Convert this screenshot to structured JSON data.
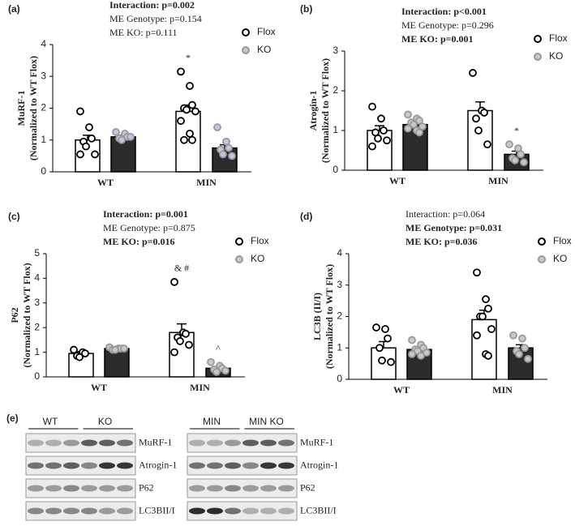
{
  "chart_data": [
    {
      "type": "bar",
      "label": "(a)",
      "stats": [
        {
          "text": "Interaction: p=0.002",
          "bold": true
        },
        {
          "text": "ME Genotype: p=0.154",
          "bold": false
        },
        {
          "text": "ME KO: p=0.111",
          "bold": false
        }
      ],
      "ylabel": [
        "MuRF-1",
        "(Normalized to WT Flox)"
      ],
      "categories": [
        "WT",
        "MIN"
      ],
      "ylim": [
        0,
        4
      ],
      "yticks": [
        0,
        1,
        2,
        3,
        4
      ],
      "series": [
        {
          "name": "Flox",
          "color": "#ffffff",
          "point_color": "#ffffff",
          "values": [
            1.0,
            1.9
          ],
          "errors": [
            0.15,
            0.2
          ],
          "points": [
            [
              1.9,
              1.4,
              1.05,
              0.95,
              0.8,
              0.55,
              0.55
            ],
            [
              3.15,
              2.7,
              2.1,
              2.0,
              1.95,
              1.9,
              1.6,
              1.2,
              1.0,
              1.0
            ]
          ],
          "sig_labels": [
            null,
            "*"
          ]
        },
        {
          "name": "KO",
          "color": "#2b2b2b",
          "point_color": "#c6c3e3",
          "values": [
            1.1,
            0.75
          ],
          "errors": [
            0.05,
            0.1
          ],
          "points": [
            [
              1.25,
              1.2,
              1.1,
              1.05,
              1.0,
              1.1
            ],
            [
              1.4,
              0.95,
              0.75,
              0.7,
              0.55,
              0.5
            ]
          ],
          "sig_labels": [
            null,
            null
          ]
        }
      ]
    },
    {
      "type": "bar",
      "label": "(b)",
      "stats": [
        {
          "text": "Interaction: p<0.001",
          "bold": true
        },
        {
          "text": "ME Genotype: p=0.296",
          "bold": false
        },
        {
          "text": "ME KO: p=0.001",
          "bold": true
        }
      ],
      "ylabel": [
        "Atrogin-1",
        "(Normalized to WT Flox)"
      ],
      "categories": [
        "WT",
        "MIN"
      ],
      "ylim": [
        0,
        3
      ],
      "yticks": [
        0,
        1,
        2,
        3
      ],
      "series": [
        {
          "name": "Flox",
          "color": "#ffffff",
          "point_color": "#ffffff",
          "values": [
            1.0,
            1.5
          ],
          "errors": [
            0.12,
            0.22
          ],
          "points": [
            [
              1.6,
              1.3,
              1.0,
              0.95,
              0.8,
              0.75,
              0.6
            ],
            [
              2.45,
              1.5,
              1.45,
              1.3,
              1.0,
              0.65
            ]
          ],
          "sig_labels": [
            null,
            null
          ]
        },
        {
          "name": "KO",
          "color": "#2b2b2b",
          "point_color": "#c8c8c8",
          "values": [
            1.15,
            0.4
          ],
          "errors": [
            0.05,
            0.08
          ],
          "points": [
            [
              1.4,
              1.3,
              1.25,
              1.2,
              1.15,
              1.1,
              1.05,
              1.0,
              0.95
            ],
            [
              0.65,
              0.55,
              0.4,
              0.3,
              0.25,
              0.2
            ]
          ],
          "sig_labels": [
            null,
            "*"
          ]
        }
      ]
    },
    {
      "type": "bar",
      "label": "(c)",
      "stats": [
        {
          "text": "Interaction: p=0.001",
          "bold": true
        },
        {
          "text": "ME Genotype: p=0.875",
          "bold": false
        },
        {
          "text": "ME KO: p=0.016",
          "bold": true
        }
      ],
      "ylabel": [
        "P62",
        "(Normalized to WT Flox)"
      ],
      "categories": [
        "WT",
        "MIN"
      ],
      "ylim": [
        0,
        5
      ],
      "yticks": [
        0,
        1,
        2,
        3,
        4,
        5
      ],
      "series": [
        {
          "name": "Flox",
          "color": "#ffffff",
          "point_color": "#ffffff",
          "values": [
            0.95,
            1.8
          ],
          "errors": [
            0.08,
            0.35
          ],
          "points": [
            [
              1.1,
              1.0,
              0.95,
              0.85,
              0.8
            ],
            [
              3.85,
              1.8,
              1.75,
              1.6,
              1.45,
              1.3,
              1.0
            ]
          ],
          "sig_labels": [
            null,
            "& #"
          ]
        },
        {
          "name": "KO",
          "color": "#2b2b2b",
          "point_color": "#c8c8c8",
          "values": [
            1.15,
            0.35
          ],
          "errors": [
            0.03,
            0.06
          ],
          "points": [
            [
              1.2,
              1.15,
              1.15,
              1.1,
              1.1,
              1.15
            ],
            [
              0.6,
              0.45,
              0.35,
              0.3,
              0.2,
              0.25
            ]
          ],
          "sig_labels": [
            null,
            "^"
          ]
        }
      ]
    },
    {
      "type": "bar",
      "label": "(d)",
      "stats": [
        {
          "text": "Interaction: p=0.064",
          "bold": false
        },
        {
          "text": "ME Genotype: p=0.031",
          "bold": true
        },
        {
          "text": "ME KO: p=0.036",
          "bold": true
        }
      ],
      "ylabel": [
        "LC3B (II/I)",
        "(Normalized to WT Flox)"
      ],
      "categories": [
        "WT",
        "MIN"
      ],
      "ylim": [
        0,
        4
      ],
      "yticks": [
        0,
        1,
        2,
        3,
        4
      ],
      "series": [
        {
          "name": "Flox",
          "color": "#ffffff",
          "point_color": "#ffffff",
          "values": [
            1.0,
            1.9
          ],
          "errors": [
            0.2,
            0.3
          ],
          "points": [
            [
              1.65,
              1.6,
              1.3,
              1.0,
              0.6,
              0.55
            ],
            [
              3.4,
              2.55,
              2.25,
              2.0,
              2.0,
              1.6,
              1.4,
              0.8,
              0.75
            ]
          ],
          "sig_labels": [
            null,
            null
          ]
        },
        {
          "name": "KO",
          "color": "#2b2b2b",
          "point_color": "#c8c8c8",
          "values": [
            0.95,
            1.0
          ],
          "errors": [
            0.07,
            0.1
          ],
          "points": [
            [
              1.25,
              1.1,
              1.0,
              0.95,
              0.9,
              0.85,
              0.8,
              0.75
            ],
            [
              1.4,
              1.3,
              1.0,
              0.9,
              0.8,
              0.65
            ]
          ],
          "sig_labels": [
            null,
            null
          ]
        }
      ]
    }
  ],
  "blots": {
    "label": "(e)",
    "left": {
      "groups": [
        "WT",
        "KO"
      ],
      "bands": [
        "MuRF-1",
        "Atrogin-1",
        "P62",
        "LC3BII/I"
      ]
    },
    "right": {
      "groups": [
        "MIN",
        "MIN KO"
      ],
      "bands": [
        "MuRF-1",
        "Atrogin-1",
        "P62",
        "LC3BII/I"
      ]
    }
  }
}
